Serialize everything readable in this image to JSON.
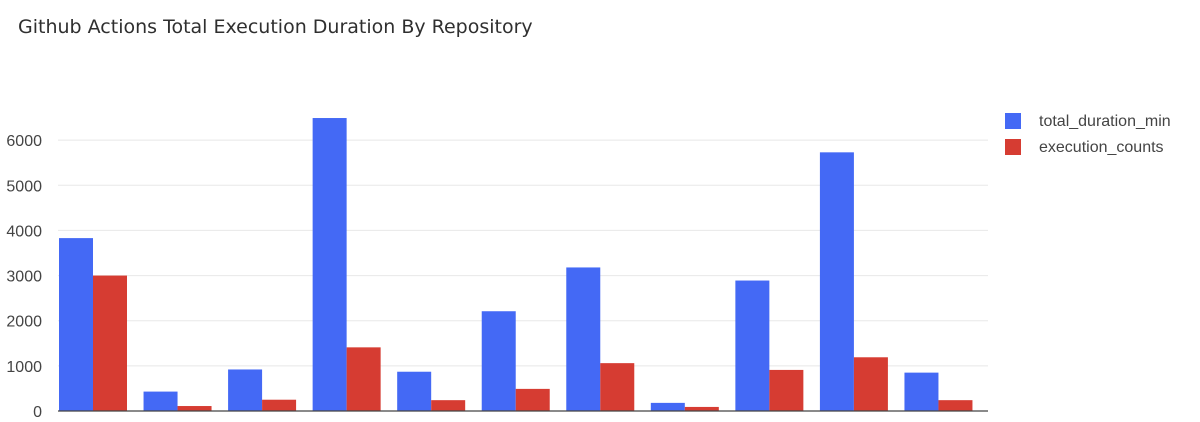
{
  "chart_data": {
    "type": "bar",
    "title": "Github Actions Total Execution Duration By Repository",
    "xlabel": "",
    "ylabel": "",
    "categories": [
      "",
      "",
      "",
      "",
      "",
      "",
      "",
      "",
      "",
      "",
      ""
    ],
    "ylim": [
      0,
      6500
    ],
    "yticks": [
      0,
      1000,
      2000,
      3000,
      4000,
      5000,
      6000
    ],
    "grid": true,
    "legend_position": "top-right",
    "series": [
      {
        "name": "total_duration_min",
        "color": "#4469f5",
        "values": [
          3830,
          430,
          920,
          6490,
          870,
          2210,
          3180,
          180,
          2890,
          5730,
          850
        ]
      },
      {
        "name": "execution_counts",
        "color": "#d63c32",
        "values": [
          3000,
          110,
          250,
          1410,
          240,
          490,
          1060,
          90,
          910,
          1190,
          240
        ]
      }
    ]
  }
}
